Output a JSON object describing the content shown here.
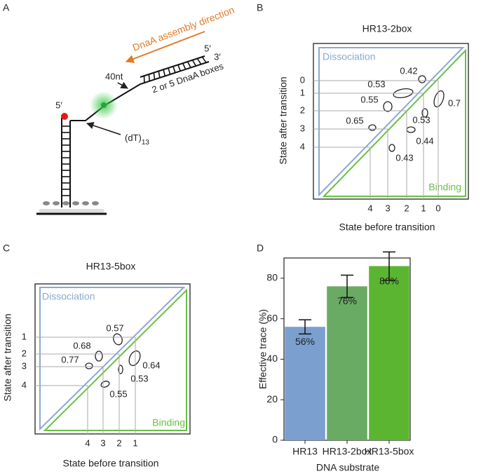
{
  "panel_a": {
    "letter": "A",
    "direction": "DnaA assembly direction",
    "end_5_top": "5′",
    "end_3_top": "3′",
    "length": "40nt",
    "boxes": "2 or 5 DnaA boxes",
    "end_5": "5′",
    "linker": "(dT)",
    "linker_sub": "13"
  },
  "panel_b": {
    "letter": "B",
    "title": "HR13-2box",
    "xlabel": "State before transition",
    "ylabel": "State after transition",
    "upper_label": "Dissociation",
    "lower_label": "Binding",
    "yticks": [
      "0",
      "1",
      "2",
      "3",
      "4"
    ],
    "xticks": [
      "4",
      "3",
      "2",
      "1",
      "0"
    ],
    "peaks": [
      "0.42",
      "0.53",
      "0.55",
      "0.65",
      "0.7",
      "0.53",
      "0.44",
      "0.43"
    ]
  },
  "panel_c": {
    "letter": "C",
    "title": "HR13-5box",
    "xlabel": "State before transition",
    "ylabel": "State after transition",
    "upper_label": "Dissociation",
    "lower_label": "Binding",
    "yticks": [
      "1",
      "2",
      "3",
      "4"
    ],
    "xticks": [
      "4",
      "3",
      "2",
      "1"
    ],
    "peaks": [
      "0.57",
      "0.68",
      "0.77",
      "0.64",
      "0.53",
      "0.55"
    ]
  },
  "chart_data": {
    "type": "bar",
    "panel_label": "D",
    "xlabel": "DNA substrate",
    "ylabel": "Effective trace (%)",
    "categories": [
      "HR13",
      "HR13-2box",
      "HR13-5box"
    ],
    "values": [
      56,
      76,
      86
    ],
    "value_labels": [
      "56%",
      "76%",
      "86%"
    ],
    "errors": [
      3.5,
      5.5,
      7
    ],
    "colors": [
      "#7b9fcf",
      "#6aab63",
      "#5bb531"
    ],
    "ylim": [
      0,
      90
    ],
    "yticks": [
      0,
      20,
      40,
      60,
      80
    ]
  }
}
